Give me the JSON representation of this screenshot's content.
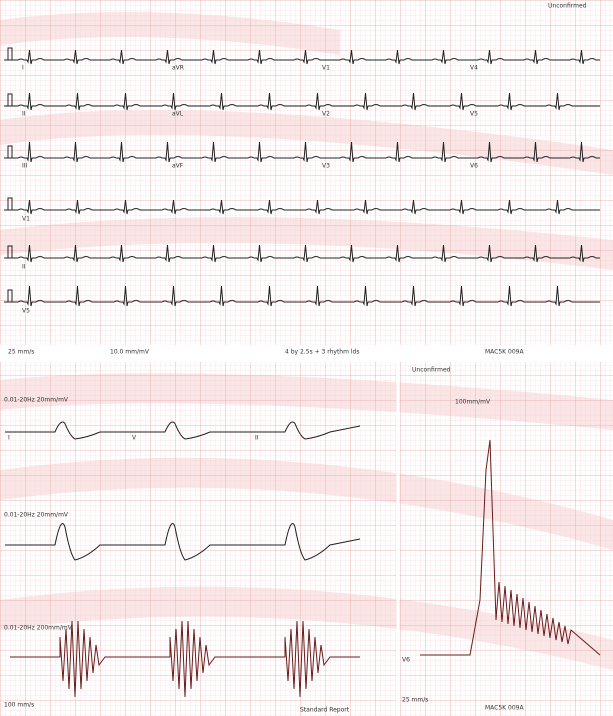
{
  "header": {
    "status": "Unconfirmed"
  },
  "leads": [
    [
      "I",
      "aVR",
      "V1",
      "V4"
    ],
    [
      "II",
      "aVL",
      "V2",
      "V5"
    ],
    [
      "III",
      "aVF",
      "V3",
      "V6"
    ]
  ],
  "rhythm_leads": [
    "V1",
    "II",
    "V5"
  ],
  "footer": {
    "speed": "25 mm/s",
    "gain": "10.0 mm/mV",
    "format": "4 by 2.5s + 3 rhythm lds",
    "device": "MAC5K 009A"
  },
  "detail": {
    "status": "Unconfirmed",
    "filters": [
      "0.01-20Hz 20mm/mV",
      "0.01-20Hz 20mm/mV",
      "0.01-20Hz 200mm/mV"
    ],
    "left_leads": [
      "I",
      "V",
      "II"
    ],
    "right_gain": "100mm/mV",
    "speed": "100 mm/s",
    "report": "Standard Report",
    "device": "MAC5K 009A",
    "right_speed": "25 mm/s",
    "right_lead": "V6"
  }
}
